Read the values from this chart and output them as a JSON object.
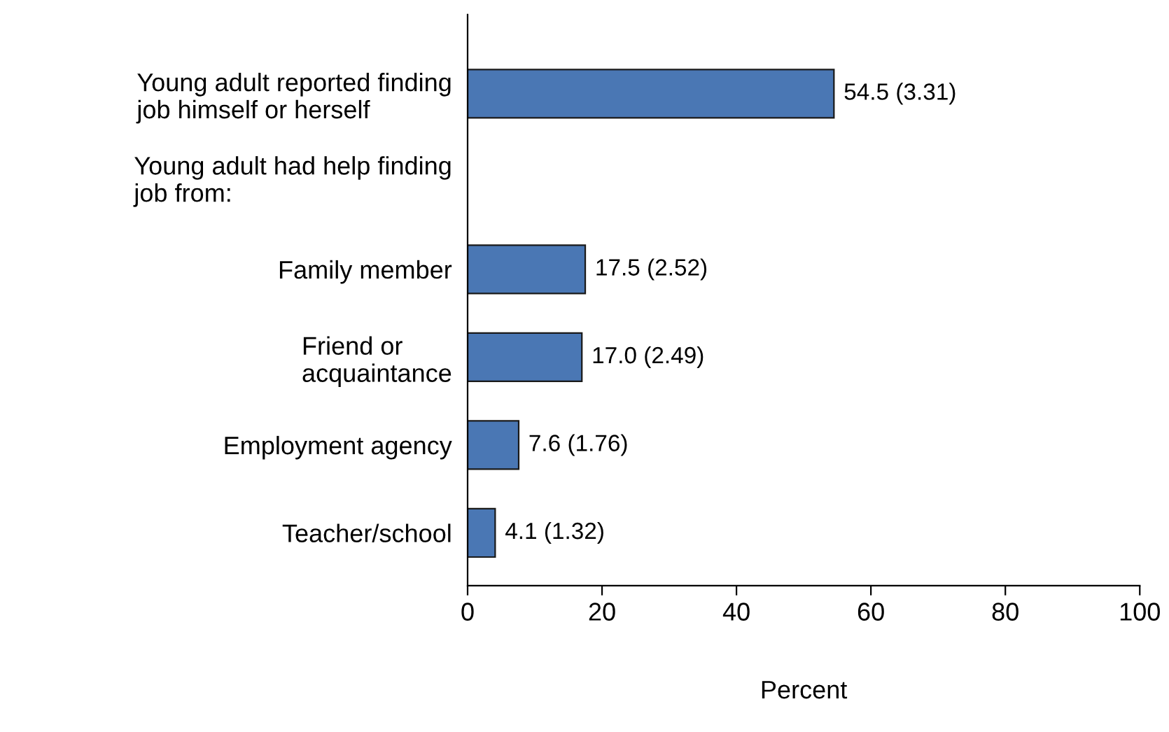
{
  "chart_data": {
    "type": "bar",
    "orientation": "horizontal",
    "xlabel": "Percent",
    "categories": [
      "Young adult reported finding\njob himself or herself",
      null,
      "Family member",
      "Friend or\nacquaintance",
      "Employment agency",
      "Teacher/school"
    ],
    "values": [
      54.5,
      null,
      17.5,
      17.0,
      7.6,
      4.1
    ],
    "value_labels": [
      "54.5 (3.31)",
      null,
      "17.5 (2.52)",
      "17.0 (2.49)",
      "7.6 (1.76)",
      "4.1 (1.32)"
    ],
    "annotations": [
      "Young adult had help finding\njob from:"
    ],
    "color": "#4a77b4",
    "xlim": [
      0,
      100
    ],
    "xticks": [
      0,
      20,
      40,
      60,
      80,
      100
    ],
    "grid": false,
    "legend": false
  }
}
